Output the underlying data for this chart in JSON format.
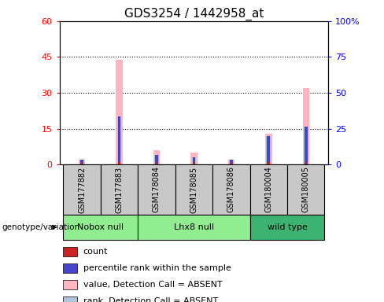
{
  "title": "GDS3254 / 1442958_at",
  "samples": [
    "GSM177882",
    "GSM177883",
    "GSM178084",
    "GSM178085",
    "GSM178086",
    "GSM180004",
    "GSM180005"
  ],
  "absent_value_values": [
    2,
    44,
    6,
    5,
    2,
    13,
    32
  ],
  "absent_rank_values": [
    2,
    20,
    4,
    3,
    2,
    12,
    16
  ],
  "percentile_rank_values": [
    2,
    20,
    4,
    3,
    2,
    12,
    16
  ],
  "count_values": [
    1,
    1,
    1,
    1,
    1,
    1,
    1
  ],
  "left_ylim": [
    0,
    60
  ],
  "right_ylim": [
    0,
    100
  ],
  "left_yticks": [
    0,
    15,
    30,
    45,
    60
  ],
  "right_yticks": [
    0,
    25,
    50,
    75,
    100
  ],
  "right_yticklabels": [
    "0",
    "25",
    "50",
    "75",
    "100%"
  ],
  "absent_value_color": "#FFB6C1",
  "absent_rank_color": "#B0C4DE",
  "percentile_color": "#4444CC",
  "count_color": "#CC2222",
  "groups_info": [
    {
      "name": "Nobox null",
      "start": 0,
      "end": 2,
      "color": "#90EE90"
    },
    {
      "name": "Lhx8 null",
      "start": 2,
      "end": 5,
      "color": "#90EE90"
    },
    {
      "name": "wild type",
      "start": 5,
      "end": 7,
      "color": "#3CB371"
    }
  ],
  "legend_items": [
    {
      "color": "#CC2222",
      "label": "count"
    },
    {
      "color": "#4444CC",
      "label": "percentile rank within the sample"
    },
    {
      "color": "#FFB6C1",
      "label": "value, Detection Call = ABSENT"
    },
    {
      "color": "#B0C4DE",
      "label": "rank, Detection Call = ABSENT"
    }
  ],
  "plot_bgcolor": "#FFFFFF",
  "sample_box_color": "#C8C8C8",
  "title_fontsize": 11
}
